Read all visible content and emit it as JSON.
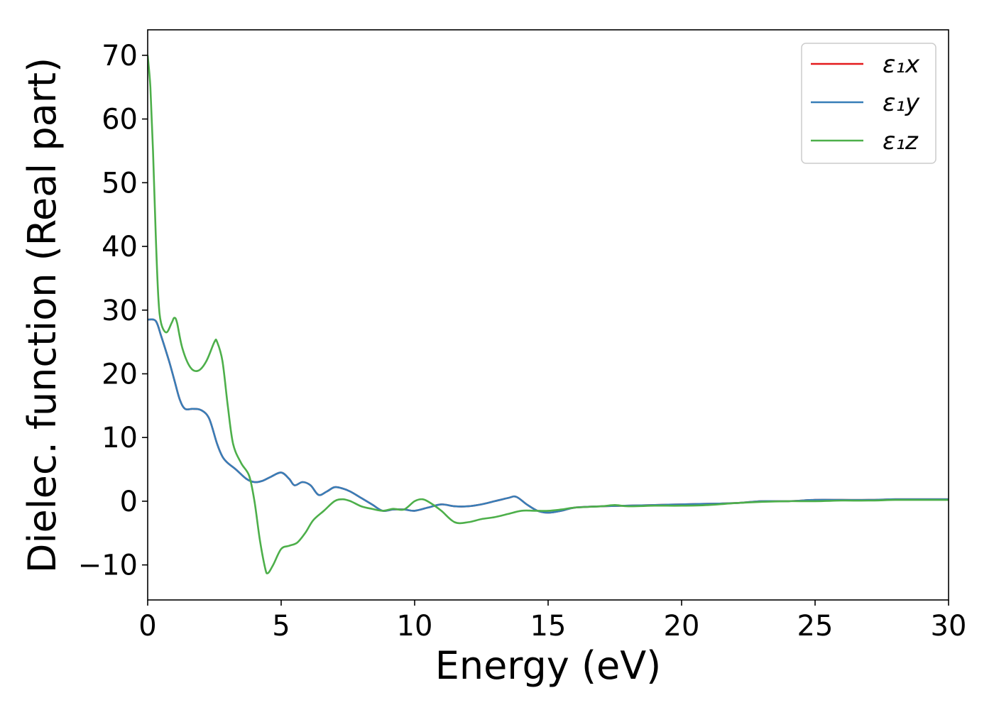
{
  "chart_data": {
    "type": "line",
    "title": "",
    "xlabel": "Energy (eV)",
    "ylabel": "Dielec. function (Real part)",
    "xlim": [
      0,
      30
    ],
    "ylim": [
      -15.5,
      74
    ],
    "xticks": [
      0,
      5,
      10,
      15,
      20,
      25,
      30
    ],
    "xtick_labels": [
      "0",
      "5",
      "10",
      "15",
      "20",
      "25",
      "30"
    ],
    "yticks": [
      -10,
      0,
      10,
      20,
      30,
      40,
      50,
      60,
      70
    ],
    "ytick_labels": [
      "−10",
      "0",
      "10",
      "20",
      "30",
      "40",
      "50",
      "60",
      "70"
    ],
    "grid": false,
    "legend_position": "top-right",
    "series": [
      {
        "name": "ε₁x",
        "color": "#e41a1c",
        "x": [
          0,
          0.3,
          0.5,
          0.8,
          1.0,
          1.2,
          1.4,
          1.7,
          2.0,
          2.3,
          2.6,
          2.8,
          3.0,
          3.3,
          3.7,
          4.0,
          4.3,
          4.6,
          5.0,
          5.3,
          5.5,
          5.8,
          6.1,
          6.4,
          6.7,
          7.0,
          7.3,
          7.6,
          8.0,
          8.4,
          8.8,
          9.2,
          9.6,
          10.0,
          10.5,
          11.0,
          11.5,
          12.0,
          12.5,
          13.0,
          13.5,
          13.8,
          14.2,
          14.6,
          15.0,
          15.5,
          16.0,
          17.0,
          18.0,
          19.0,
          20.0,
          21.0,
          22.0,
          23.0,
          24.0,
          25.0,
          26.0,
          27.0,
          28.0,
          29.0,
          30.0
        ],
        "values": [
          28.5,
          28.3,
          26.0,
          22.0,
          19.0,
          16.0,
          14.5,
          14.5,
          14.3,
          13.0,
          9.0,
          7.0,
          6.0,
          5.0,
          3.5,
          3.0,
          3.2,
          3.8,
          4.5,
          3.5,
          2.5,
          3.0,
          2.5,
          1.0,
          1.5,
          2.2,
          2.0,
          1.5,
          0.5,
          -0.5,
          -1.5,
          -1.3,
          -1.3,
          -1.5,
          -1.0,
          -0.5,
          -0.8,
          -0.8,
          -0.5,
          0.0,
          0.5,
          0.7,
          -0.5,
          -1.5,
          -1.8,
          -1.5,
          -1.0,
          -0.8,
          -0.7,
          -0.6,
          -0.5,
          -0.4,
          -0.3,
          0.0,
          0.0,
          0.2,
          0.2,
          0.2,
          0.3,
          0.3,
          0.3
        ]
      },
      {
        "name": "ε₁y",
        "color": "#377eb8",
        "x": [
          0,
          0.3,
          0.5,
          0.8,
          1.0,
          1.2,
          1.4,
          1.7,
          2.0,
          2.3,
          2.6,
          2.8,
          3.0,
          3.3,
          3.7,
          4.0,
          4.3,
          4.6,
          5.0,
          5.3,
          5.5,
          5.8,
          6.1,
          6.4,
          6.7,
          7.0,
          7.3,
          7.6,
          8.0,
          8.4,
          8.8,
          9.2,
          9.6,
          10.0,
          10.5,
          11.0,
          11.5,
          12.0,
          12.5,
          13.0,
          13.5,
          13.8,
          14.2,
          14.6,
          15.0,
          15.5,
          16.0,
          17.0,
          18.0,
          19.0,
          20.0,
          21.0,
          22.0,
          23.0,
          24.0,
          25.0,
          26.0,
          27.0,
          28.0,
          29.0,
          30.0
        ],
        "values": [
          28.5,
          28.3,
          26.0,
          22.0,
          19.0,
          16.0,
          14.5,
          14.5,
          14.3,
          13.0,
          9.0,
          7.0,
          6.0,
          5.0,
          3.5,
          3.0,
          3.2,
          3.8,
          4.5,
          3.5,
          2.5,
          3.0,
          2.5,
          1.0,
          1.5,
          2.2,
          2.0,
          1.5,
          0.5,
          -0.5,
          -1.5,
          -1.3,
          -1.3,
          -1.5,
          -1.0,
          -0.5,
          -0.8,
          -0.8,
          -0.5,
          0.0,
          0.5,
          0.7,
          -0.5,
          -1.5,
          -1.8,
          -1.5,
          -1.0,
          -0.8,
          -0.7,
          -0.6,
          -0.5,
          -0.4,
          -0.3,
          0.0,
          0.0,
          0.2,
          0.2,
          0.2,
          0.3,
          0.3,
          0.3
        ]
      },
      {
        "name": "ε₁z",
        "color": "#4daf4a",
        "x": [
          0,
          0.1,
          0.2,
          0.3,
          0.4,
          0.5,
          0.7,
          0.9,
          1.0,
          1.1,
          1.3,
          1.6,
          1.9,
          2.2,
          2.5,
          2.6,
          2.8,
          3.0,
          3.2,
          3.5,
          3.8,
          4.0,
          4.2,
          4.4,
          4.5,
          4.7,
          5.0,
          5.3,
          5.6,
          5.9,
          6.2,
          6.6,
          7.0,
          7.3,
          7.6,
          8.0,
          8.4,
          8.8,
          9.2,
          9.6,
          10.0,
          10.3,
          10.6,
          11.0,
          11.5,
          12.0,
          12.5,
          13.0,
          13.5,
          14.0,
          14.5,
          15.0,
          15.5,
          16.0,
          17.0,
          17.5,
          18.0,
          19.0,
          20.0,
          21.0,
          22.0,
          23.0,
          24.0,
          25.0,
          26.0,
          27.0,
          28.0,
          29.0,
          30.0
        ],
        "values": [
          70.0,
          65.0,
          55.0,
          42.0,
          32.0,
          28.0,
          26.5,
          28.0,
          28.8,
          28.0,
          24.0,
          21.0,
          20.5,
          22.0,
          25.0,
          25.0,
          22.0,
          15.0,
          9.0,
          6.0,
          4.0,
          0.0,
          -6.0,
          -10.5,
          -11.3,
          -10.0,
          -7.5,
          -7.0,
          -6.5,
          -5.0,
          -3.0,
          -1.5,
          0.0,
          0.3,
          0.0,
          -0.8,
          -1.2,
          -1.5,
          -1.2,
          -1.3,
          0.0,
          0.3,
          -0.3,
          -1.5,
          -3.3,
          -3.3,
          -2.8,
          -2.5,
          -2.0,
          -1.5,
          -1.5,
          -1.5,
          -1.3,
          -1.0,
          -0.8,
          -0.6,
          -0.8,
          -0.7,
          -0.7,
          -0.6,
          -0.3,
          -0.1,
          0.0,
          0.0,
          0.1,
          0.1,
          0.2,
          0.2,
          0.2
        ]
      }
    ]
  }
}
